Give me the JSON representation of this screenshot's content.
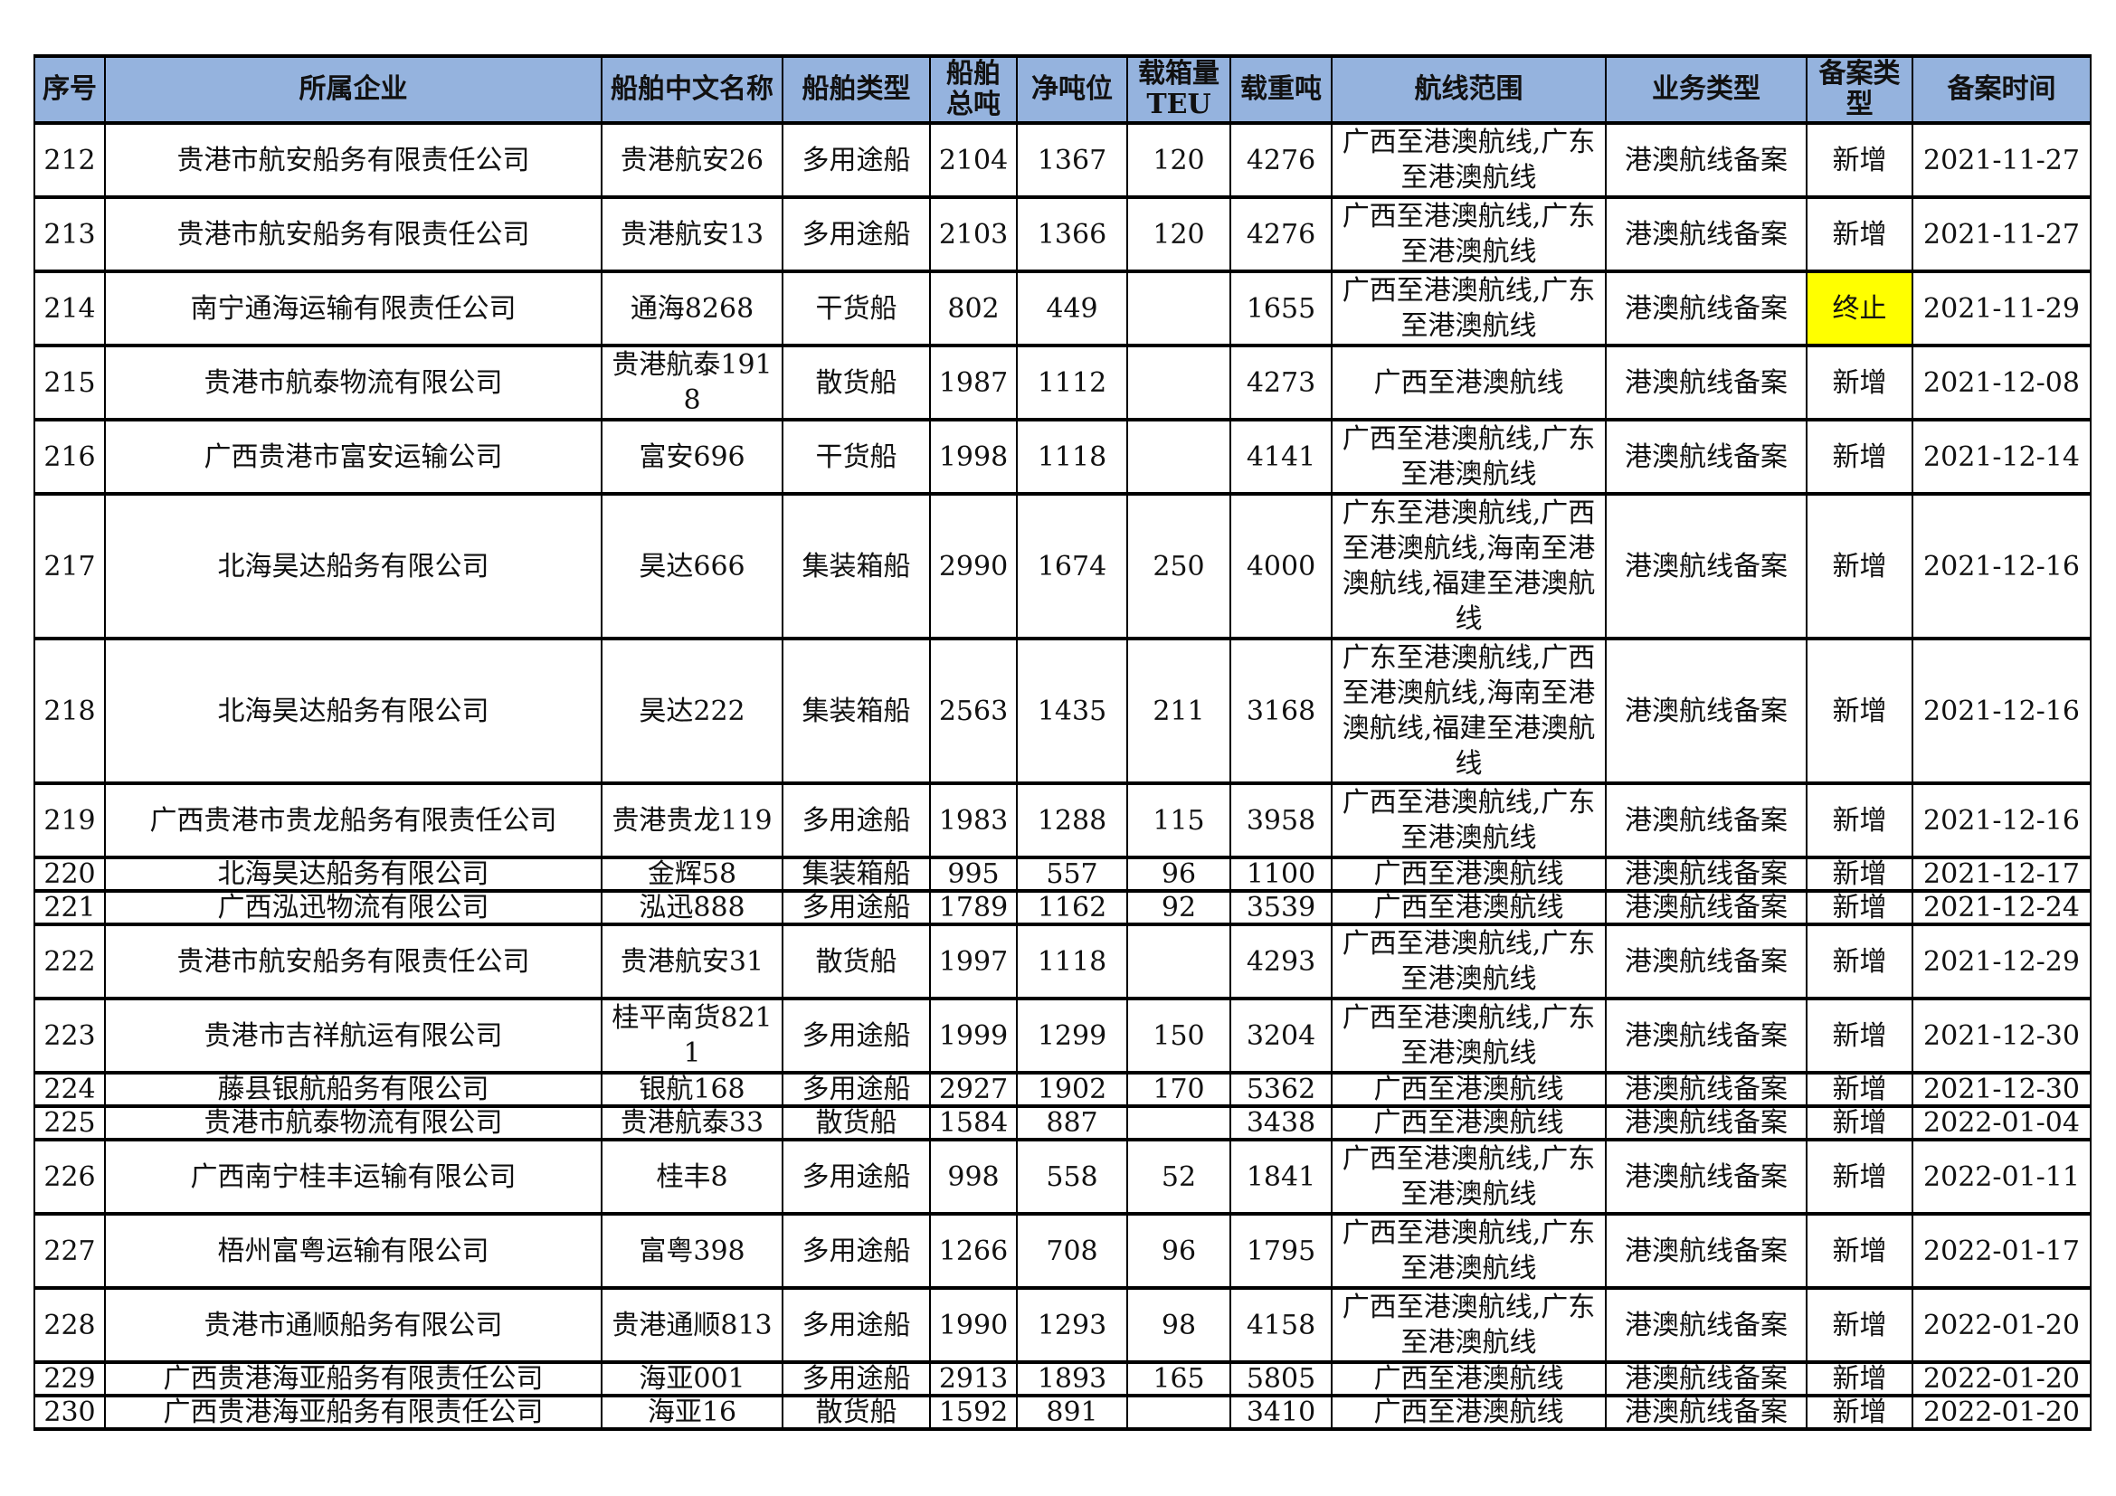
{
  "headers": [
    "序号",
    "所属企业",
    "船舶中文名称",
    "船舶类型",
    "船舶总吨",
    "净吨位",
    "载箱量TEU",
    "载重吨",
    "航线范围",
    "业务类型",
    "备案类型",
    "备案时间"
  ],
  "highlight_color": "#ffff00",
  "header_color": "#95b3de",
  "rows": [
    [
      "212",
      "贵港市航安船务有限责任公司",
      "贵港航安26",
      "多用途船",
      "2104",
      "1367",
      "120",
      "4276",
      "广西至港澳航线,广东至港澳航线",
      "港澳航线备案",
      "新增",
      "2021-11-27"
    ],
    [
      "213",
      "贵港市航安船务有限责任公司",
      "贵港航安13",
      "多用途船",
      "2103",
      "1366",
      "120",
      "4276",
      "广西至港澳航线,广东至港澳航线",
      "港澳航线备案",
      "新增",
      "2021-11-27"
    ],
    [
      "214",
      "南宁通海运输有限责任公司",
      "通海8268",
      "干货船",
      "802",
      "449",
      "",
      "1655",
      "广西至港澳航线,广东至港澳航线",
      "港澳航线备案",
      "终止",
      "2021-11-29"
    ],
    [
      "215",
      "贵港市航泰物流有限公司",
      "贵港航泰1918",
      "散货船",
      "1987",
      "1112",
      "",
      "4273",
      "广西至港澳航线",
      "港澳航线备案",
      "新增",
      "2021-12-08"
    ],
    [
      "216",
      "广西贵港市富安运输公司",
      "富安696",
      "干货船",
      "1998",
      "1118",
      "",
      "4141",
      "广西至港澳航线,广东至港澳航线",
      "港澳航线备案",
      "新增",
      "2021-12-14"
    ],
    [
      "217",
      "北海昊达船务有限公司",
      "昊达666",
      "集装箱船",
      "2990",
      "1674",
      "250",
      "4000",
      "广东至港澳航线,广西至港澳航线,海南至港澳航线,福建至港澳航线",
      "港澳航线备案",
      "新增",
      "2021-12-16"
    ],
    [
      "218",
      "北海昊达船务有限公司",
      "昊达222",
      "集装箱船",
      "2563",
      "1435",
      "211",
      "3168",
      "广东至港澳航线,广西至港澳航线,海南至港澳航线,福建至港澳航线",
      "港澳航线备案",
      "新增",
      "2021-12-16"
    ],
    [
      "219",
      "广西贵港市贵龙船务有限责任公司",
      "贵港贵龙119",
      "多用途船",
      "1983",
      "1288",
      "115",
      "3958",
      "广西至港澳航线,广东至港澳航线",
      "港澳航线备案",
      "新增",
      "2021-12-16"
    ],
    [
      "220",
      "北海昊达船务有限公司",
      "金辉58",
      "集装箱船",
      "995",
      "557",
      "96",
      "1100",
      "广西至港澳航线",
      "港澳航线备案",
      "新增",
      "2021-12-17"
    ],
    [
      "221",
      "广西泓迅物流有限公司",
      "泓迅888",
      "多用途船",
      "1789",
      "1162",
      "92",
      "3539",
      "广西至港澳航线",
      "港澳航线备案",
      "新增",
      "2021-12-24"
    ],
    [
      "222",
      "贵港市航安船务有限责任公司",
      "贵港航安31",
      "散货船",
      "1997",
      "1118",
      "",
      "4293",
      "广西至港澳航线,广东至港澳航线",
      "港澳航线备案",
      "新增",
      "2021-12-29"
    ],
    [
      "223",
      "贵港市吉祥航运有限公司",
      "桂平南货8211",
      "多用途船",
      "1999",
      "1299",
      "150",
      "3204",
      "广西至港澳航线,广东至港澳航线",
      "港澳航线备案",
      "新增",
      "2021-12-30"
    ],
    [
      "224",
      "藤县银航船务有限公司",
      "银航168",
      "多用途船",
      "2927",
      "1902",
      "170",
      "5362",
      "广西至港澳航线",
      "港澳航线备案",
      "新增",
      "2021-12-30"
    ],
    [
      "225",
      "贵港市航泰物流有限公司",
      "贵港航泰33",
      "散货船",
      "1584",
      "887",
      "",
      "3438",
      "广西至港澳航线",
      "港澳航线备案",
      "新增",
      "2022-01-04"
    ],
    [
      "226",
      "广西南宁桂丰运输有限公司",
      "桂丰8",
      "多用途船",
      "998",
      "558",
      "52",
      "1841",
      "广西至港澳航线,广东至港澳航线",
      "港澳航线备案",
      "新增",
      "2022-01-11"
    ],
    [
      "227",
      "梧州富粤运输有限公司",
      "富粤398",
      "多用途船",
      "1266",
      "708",
      "96",
      "1795",
      "广西至港澳航线,广东至港澳航线",
      "港澳航线备案",
      "新增",
      "2022-01-17"
    ],
    [
      "228",
      "贵港市通顺船务有限公司",
      "贵港通顺813",
      "多用途船",
      "1990",
      "1293",
      "98",
      "4158",
      "广西至港澳航线,广东至港澳航线",
      "港澳航线备案",
      "新增",
      "2022-01-20"
    ],
    [
      "229",
      "广西贵港海亚船务有限责任公司",
      "海亚001",
      "多用途船",
      "2913",
      "1893",
      "165",
      "5805",
      "广西至港澳航线",
      "港澳航线备案",
      "新增",
      "2022-01-20"
    ],
    [
      "230",
      "广西贵港海亚船务有限责任公司",
      "海亚16",
      "散货船",
      "1592",
      "891",
      "",
      "3410",
      "广西至港澳航线",
      "港澳航线备案",
      "新增",
      "2022-01-20"
    ]
  ]
}
